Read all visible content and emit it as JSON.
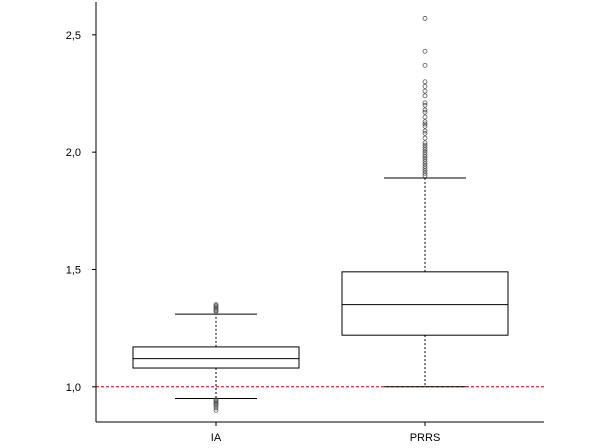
{
  "chart_data": {
    "type": "boxplot",
    "categories": [
      "IA",
      "PRRS"
    ],
    "ylim": [
      0.85,
      2.64
    ],
    "yticks": [
      {
        "value": 1.0,
        "label": "1,0"
      },
      {
        "value": 1.5,
        "label": "1,5"
      },
      {
        "value": 2.0,
        "label": "2,0"
      },
      {
        "value": 2.5,
        "label": "2,5"
      }
    ],
    "reference_line": {
      "value": 1.0,
      "color": "#c00000",
      "style": "dashed"
    },
    "boxes": [
      {
        "name": "IA",
        "whisker_low": 0.95,
        "q1": 1.08,
        "median": 1.12,
        "q3": 1.17,
        "whisker_high": 1.31,
        "outliers": [
          0.9,
          0.91,
          0.92,
          0.925,
          0.93,
          0.935,
          0.94,
          0.945,
          1.32,
          1.325,
          1.33,
          1.335,
          1.34,
          1.345,
          1.35
        ]
      },
      {
        "name": "PRRS",
        "whisker_low": 1.0,
        "q1": 1.22,
        "median": 1.35,
        "q3": 1.49,
        "whisker_high": 1.89,
        "outliers": [
          1.9,
          1.91,
          1.92,
          1.93,
          1.94,
          1.95,
          1.96,
          1.97,
          1.98,
          1.99,
          2.0,
          2.01,
          2.02,
          2.03,
          2.04,
          2.06,
          2.08,
          2.09,
          2.11,
          2.12,
          2.13,
          2.15,
          2.17,
          2.18,
          2.2,
          2.21,
          2.24,
          2.26,
          2.28,
          2.3,
          2.37,
          2.43,
          2.57
        ]
      }
    ],
    "colors": {
      "box": "#000000",
      "outlier": "#555555",
      "axis": "#000000"
    }
  }
}
